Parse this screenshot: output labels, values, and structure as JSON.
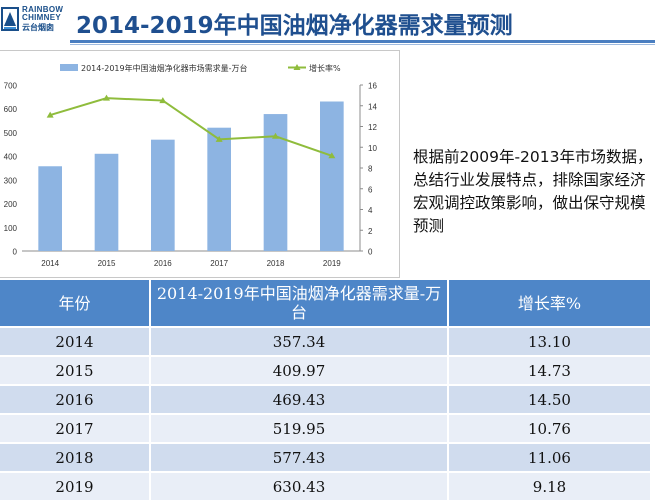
{
  "header": {
    "title": "2014-2019年中国油烟净化器需求量预测",
    "logo_line1": "RAINBOW",
    "logo_line2": "CHIMNEY",
    "logo_cn": "云台烟囱",
    "logo_icon": "rainbow-chimney-logo"
  },
  "description": "根据前2009年-2013年市场数据，总结行业发展特点，排除国家经济宏观调控政策影响，做出保守规模预测",
  "chart_data": {
    "type": "bar",
    "categories": [
      "2014",
      "2015",
      "2016",
      "2017",
      "2018",
      "2019"
    ],
    "series": [
      {
        "name": "2014-2019年中国油烟净化器市场需求量-万台",
        "type": "bar",
        "axis": "left",
        "color": "#8db4e2",
        "values": [
          357.34,
          409.97,
          469.43,
          519.95,
          577.43,
          630.43
        ]
      },
      {
        "name": "增长率%",
        "type": "line",
        "axis": "right",
        "color": "#8fbc3c",
        "values": [
          13.1,
          14.73,
          14.5,
          10.76,
          11.06,
          9.18
        ]
      }
    ],
    "y_left": {
      "min": 0,
      "max": 700,
      "step": 100,
      "ticks": [
        "0",
        "100",
        "200",
        "300",
        "400",
        "500",
        "600",
        "700"
      ]
    },
    "y_right": {
      "min": 0,
      "max": 16,
      "step": 2,
      "ticks": [
        "0",
        "2",
        "4",
        "6",
        "8",
        "10",
        "12",
        "14",
        "16"
      ]
    },
    "legend_position": "top",
    "grid": false
  },
  "table": {
    "headers": [
      "年份",
      "2014-2019年中国油烟净化器需求量-万台",
      "增长率%"
    ],
    "rows": [
      [
        "2014",
        "357.34",
        "13.10"
      ],
      [
        "2015",
        "409.97",
        "14.73"
      ],
      [
        "2016",
        "469.43",
        "14.50"
      ],
      [
        "2017",
        "519.95",
        "10.76"
      ],
      [
        "2018",
        "577.43",
        "11.06"
      ],
      [
        "2019",
        "630.43",
        "9.18"
      ]
    ]
  }
}
